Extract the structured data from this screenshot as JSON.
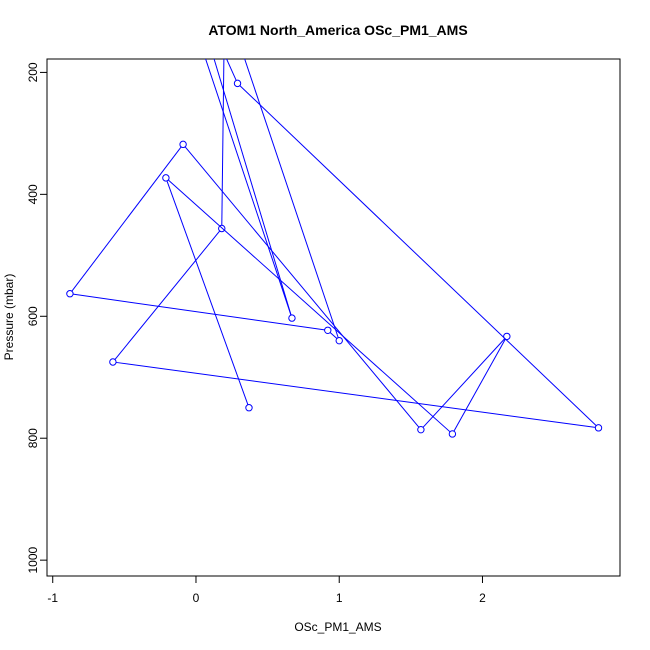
{
  "chart_data": {
    "type": "line",
    "title": "ATOM1 North_America OSc_PM1_AMS",
    "xlabel": "OSc_PM1_AMS",
    "ylabel": "Pressure (mbar)",
    "xlim": [
      -1.04,
      2.96
    ],
    "ylim": [
      1026,
      178
    ],
    "y_reversed": true,
    "xticks": [
      -1,
      0,
      1,
      2
    ],
    "xtick_labels": [
      "-1",
      "0",
      "1",
      "2"
    ],
    "yticks": [
      200,
      400,
      600,
      800,
      1000
    ],
    "ytick_labels": [
      "200",
      "400",
      "600",
      "800",
      "1000"
    ],
    "grid": false,
    "marker": "open-circle",
    "series_color": "#0000ff",
    "points": [
      {
        "x": 0.37,
        "y": 750
      },
      {
        "x": -0.21,
        "y": 373
      },
      {
        "x": 1.79,
        "y": 793
      },
      {
        "x": 2.17,
        "y": 633
      },
      {
        "x": 1.57,
        "y": 786
      },
      {
        "x": -0.09,
        "y": 318
      },
      {
        "x": -0.88,
        "y": 563
      },
      {
        "x": 0.92,
        "y": 623
      },
      {
        "x": 1.0,
        "y": 640
      },
      {
        "x": 0.2,
        "y": 80
      },
      {
        "x": 0.18,
        "y": 456
      },
      {
        "x": -0.58,
        "y": 675
      },
      {
        "x": 2.81,
        "y": 783
      },
      {
        "x": 0.29,
        "y": 218
      },
      {
        "x": -0.05,
        "y": 40
      },
      {
        "x": 0.67,
        "y": 603
      },
      {
        "x": -0.1,
        "y": 60
      }
    ]
  }
}
